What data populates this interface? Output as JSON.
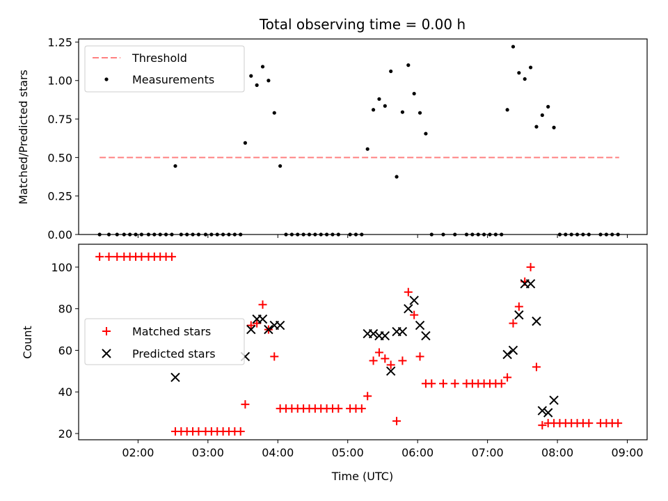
{
  "chart_data": [
    {
      "type": "scatter",
      "title": "Total observing time = 0.00 h",
      "xlabel": "",
      "ylabel": "Matched/Predicted stars",
      "xlim": [
        "01:09",
        "09:17"
      ],
      "ylim": [
        0,
        1.27
      ],
      "yticks": [
        0.0,
        0.25,
        0.5,
        0.75,
        1.0,
        1.25
      ],
      "ytick_labels": [
        "0.00",
        "0.25",
        "0.50",
        "0.75",
        "1.00",
        "1.25"
      ],
      "xticks": [
        "02:00",
        "03:00",
        "04:00",
        "05:00",
        "06:00",
        "07:00",
        "08:00",
        "09:00"
      ],
      "legend_position": "top-left",
      "threshold": {
        "name": "Threshold",
        "value": 0.5,
        "x_range": [
          "01:27",
          "08:53"
        ],
        "color": "#ff8080",
        "style": "dashed"
      },
      "series": [
        {
          "name": "Measurements",
          "color": "#000000",
          "marker": "dot",
          "points": [
            [
              "01:27",
              0
            ],
            [
              "01:35",
              0
            ],
            [
              "01:42",
              0
            ],
            [
              "01:48",
              0
            ],
            [
              "01:53",
              0
            ],
            [
              "01:58",
              0
            ],
            [
              "02:03",
              0
            ],
            [
              "02:09",
              0
            ],
            [
              "02:14",
              0
            ],
            [
              "02:19",
              0
            ],
            [
              "02:24",
              0
            ],
            [
              "02:29",
              0
            ],
            [
              "02:32",
              0.445
            ],
            [
              "02:37",
              0
            ],
            [
              "02:42",
              0
            ],
            [
              "02:47",
              0
            ],
            [
              "02:52",
              0
            ],
            [
              "02:58",
              0
            ],
            [
              "03:03",
              0
            ],
            [
              "03:08",
              0
            ],
            [
              "03:13",
              0
            ],
            [
              "03:18",
              0
            ],
            [
              "03:23",
              0
            ],
            [
              "03:28",
              0
            ],
            [
              "03:32",
              0.595
            ],
            [
              "03:37",
              1.03
            ],
            [
              "03:42",
              0.97
            ],
            [
              "03:47",
              1.09
            ],
            [
              "03:52",
              1.0
            ],
            [
              "03:57",
              0.79
            ],
            [
              "04:02",
              0.445
            ],
            [
              "04:07",
              0
            ],
            [
              "04:12",
              0
            ],
            [
              "04:17",
              0
            ],
            [
              "04:22",
              0
            ],
            [
              "04:27",
              0
            ],
            [
              "04:32",
              0
            ],
            [
              "04:37",
              0
            ],
            [
              "04:42",
              0
            ],
            [
              "04:47",
              0
            ],
            [
              "04:52",
              0
            ],
            [
              "05:02",
              0
            ],
            [
              "05:07",
              0
            ],
            [
              "05:12",
              0
            ],
            [
              "05:17",
              0.555
            ],
            [
              "05:22",
              0.81
            ],
            [
              "05:27",
              0.88
            ],
            [
              "05:32",
              0.835
            ],
            [
              "05:37",
              1.06
            ],
            [
              "05:42",
              0.375
            ],
            [
              "05:47",
              0.795
            ],
            [
              "05:52",
              1.1
            ],
            [
              "05:57",
              0.915
            ],
            [
              "06:02",
              0.79
            ],
            [
              "06:07",
              0.655
            ],
            [
              "06:12",
              0
            ],
            [
              "06:22",
              0
            ],
            [
              "06:32",
              0
            ],
            [
              "06:42",
              0
            ],
            [
              "06:47",
              0
            ],
            [
              "06:52",
              0
            ],
            [
              "06:57",
              0
            ],
            [
              "07:02",
              0
            ],
            [
              "07:07",
              0
            ],
            [
              "07:12",
              0
            ],
            [
              "07:17",
              0.81
            ],
            [
              "07:22",
              1.22
            ],
            [
              "07:27",
              1.05
            ],
            [
              "07:32",
              1.01
            ],
            [
              "07:37",
              1.085
            ],
            [
              "07:42",
              0.7
            ],
            [
              "07:47",
              0.775
            ],
            [
              "07:52",
              0.83
            ],
            [
              "07:57",
              0.695
            ],
            [
              "08:02",
              0
            ],
            [
              "08:07",
              0
            ],
            [
              "08:12",
              0
            ],
            [
              "08:17",
              0
            ],
            [
              "08:22",
              0
            ],
            [
              "08:27",
              0
            ],
            [
              "08:37",
              0
            ],
            [
              "08:42",
              0
            ],
            [
              "08:47",
              0
            ],
            [
              "08:52",
              0
            ]
          ]
        }
      ]
    },
    {
      "type": "scatter",
      "title": "",
      "xlabel": "Time (UTC)",
      "ylabel": "Count",
      "xlim": [
        "01:09",
        "09:17"
      ],
      "ylim": [
        17,
        111
      ],
      "yticks": [
        20,
        40,
        60,
        80,
        100
      ],
      "ytick_labels": [
        "20",
        "40",
        "60",
        "80",
        "100"
      ],
      "xticks": [
        "02:00",
        "03:00",
        "04:00",
        "05:00",
        "06:00",
        "07:00",
        "08:00",
        "09:00"
      ],
      "xtick_labels": [
        "02:00",
        "03:00",
        "04:00",
        "05:00",
        "06:00",
        "07:00",
        "08:00",
        "09:00"
      ],
      "legend_position": "center-left",
      "series": [
        {
          "name": "Matched stars",
          "color": "#ff0000",
          "marker": "plus",
          "points": [
            [
              "01:27",
              105
            ],
            [
              "01:35",
              105
            ],
            [
              "01:42",
              105
            ],
            [
              "01:48",
              105
            ],
            [
              "01:53",
              105
            ],
            [
              "01:58",
              105
            ],
            [
              "02:03",
              105
            ],
            [
              "02:09",
              105
            ],
            [
              "02:14",
              105
            ],
            [
              "02:19",
              105
            ],
            [
              "02:24",
              105
            ],
            [
              "02:29",
              105
            ],
            [
              "02:32",
              21
            ],
            [
              "02:37",
              21
            ],
            [
              "02:42",
              21
            ],
            [
              "02:47",
              21
            ],
            [
              "02:52",
              21
            ],
            [
              "02:58",
              21
            ],
            [
              "03:03",
              21
            ],
            [
              "03:08",
              21
            ],
            [
              "03:13",
              21
            ],
            [
              "03:18",
              21
            ],
            [
              "03:23",
              21
            ],
            [
              "03:28",
              21
            ],
            [
              "03:32",
              34
            ],
            [
              "03:37",
              72
            ],
            [
              "03:42",
              73
            ],
            [
              "03:47",
              82
            ],
            [
              "03:52",
              70
            ],
            [
              "03:57",
              57
            ],
            [
              "04:02",
              32
            ],
            [
              "04:07",
              32
            ],
            [
              "04:12",
              32
            ],
            [
              "04:17",
              32
            ],
            [
              "04:22",
              32
            ],
            [
              "04:27",
              32
            ],
            [
              "04:32",
              32
            ],
            [
              "04:37",
              32
            ],
            [
              "04:42",
              32
            ],
            [
              "04:47",
              32
            ],
            [
              "04:52",
              32
            ],
            [
              "05:02",
              32
            ],
            [
              "05:07",
              32
            ],
            [
              "05:12",
              32
            ],
            [
              "05:17",
              38
            ],
            [
              "05:22",
              55
            ],
            [
              "05:27",
              59
            ],
            [
              "05:32",
              56
            ],
            [
              "05:37",
              53
            ],
            [
              "05:42",
              26
            ],
            [
              "05:47",
              55
            ],
            [
              "05:52",
              88
            ],
            [
              "05:57",
              77
            ],
            [
              "06:02",
              57
            ],
            [
              "06:07",
              44
            ],
            [
              "06:12",
              44
            ],
            [
              "06:22",
              44
            ],
            [
              "06:32",
              44
            ],
            [
              "06:42",
              44
            ],
            [
              "06:47",
              44
            ],
            [
              "06:52",
              44
            ],
            [
              "06:57",
              44
            ],
            [
              "07:02",
              44
            ],
            [
              "07:07",
              44
            ],
            [
              "07:12",
              44
            ],
            [
              "07:17",
              47
            ],
            [
              "07:22",
              73
            ],
            [
              "07:27",
              81
            ],
            [
              "07:32",
              93
            ],
            [
              "07:37",
              100
            ],
            [
              "07:42",
              52
            ],
            [
              "07:47",
              24
            ],
            [
              "07:52",
              25
            ],
            [
              "07:57",
              25
            ],
            [
              "08:02",
              25
            ],
            [
              "08:07",
              25
            ],
            [
              "08:12",
              25
            ],
            [
              "08:17",
              25
            ],
            [
              "08:22",
              25
            ],
            [
              "08:27",
              25
            ],
            [
              "08:37",
              25
            ],
            [
              "08:42",
              25
            ],
            [
              "08:47",
              25
            ],
            [
              "08:52",
              25
            ]
          ]
        },
        {
          "name": "Predicted stars",
          "color": "#000000",
          "marker": "x",
          "points": [
            [
              "02:32",
              47
            ],
            [
              "03:32",
              57
            ],
            [
              "03:37",
              70
            ],
            [
              "03:42",
              75
            ],
            [
              "03:47",
              75
            ],
            [
              "03:52",
              70
            ],
            [
              "03:57",
              72
            ],
            [
              "04:02",
              72
            ],
            [
              "05:17",
              68
            ],
            [
              "05:22",
              68
            ],
            [
              "05:27",
              67
            ],
            [
              "05:32",
              67
            ],
            [
              "05:37",
              50
            ],
            [
              "05:42",
              69
            ],
            [
              "05:47",
              69
            ],
            [
              "05:52",
              80
            ],
            [
              "05:57",
              84
            ],
            [
              "06:02",
              72
            ],
            [
              "06:07",
              67
            ],
            [
              "07:17",
              58
            ],
            [
              "07:22",
              60
            ],
            [
              "07:27",
              77
            ],
            [
              "07:32",
              92
            ],
            [
              "07:37",
              92
            ],
            [
              "07:42",
              74
            ],
            [
              "07:47",
              31
            ],
            [
              "07:52",
              30
            ],
            [
              "07:57",
              36
            ]
          ]
        }
      ]
    }
  ]
}
